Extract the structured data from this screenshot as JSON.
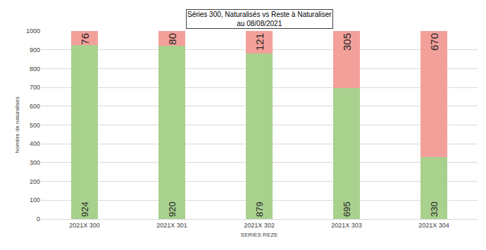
{
  "chart_data": {
    "type": "bar",
    "title": "Séries 300, Naturalisés vs Reste à Naturaliser\nau 08/08/2021",
    "x_label": "SERIES REZE",
    "y_label": "Nombre de naturalisés",
    "categories": [
      "2021X 300",
      "2021X 301",
      "2021X 302",
      "2021X 303",
      "2021X 304"
    ],
    "series": [
      {
        "color": "#a9d18e",
        "values": [
          924,
          920,
          879,
          695,
          330
        ]
      },
      {
        "color": "#f4a09a",
        "values": [
          76,
          80,
          121,
          305,
          670
        ]
      }
    ],
    "stacked": true,
    "data_labels": true,
    "grid": true,
    "ylim": [
      0,
      1000
    ],
    "yticks": [
      0,
      100,
      200,
      300,
      400,
      500,
      600,
      700,
      800,
      900,
      1000
    ]
  }
}
